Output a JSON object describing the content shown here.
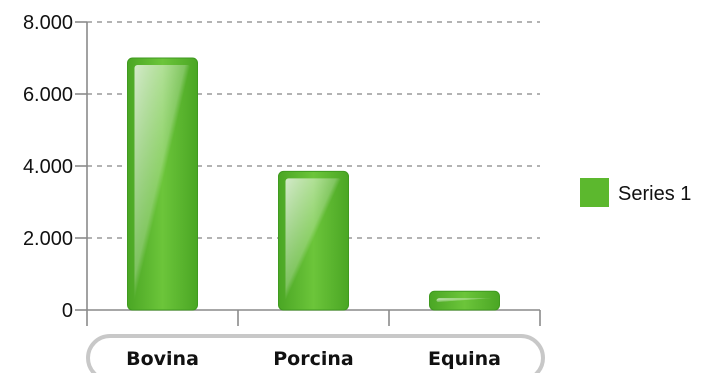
{
  "chart_data": {
    "type": "bar",
    "categories": [
      "Bovina",
      "Porcina",
      "Equina"
    ],
    "series": [
      {
        "name": "Series 1",
        "values": [
          7000,
          3850,
          520
        ]
      }
    ],
    "title": "",
    "xlabel": "",
    "ylabel": "",
    "ylim": [
      0,
      8000
    ],
    "yticks": [
      "0",
      "2.000",
      "4.000",
      "6.000",
      "8.000"
    ],
    "ytick_values": [
      0,
      2000,
      4000,
      6000,
      8000
    ],
    "grid": true,
    "legend": "right",
    "colors": {
      "bar": "#5cb82e",
      "bar_light": "#9fd86a",
      "bar_dark": "#3f9a1f",
      "grid": "#9a9a9a",
      "axis": "#8a8a8a"
    }
  }
}
